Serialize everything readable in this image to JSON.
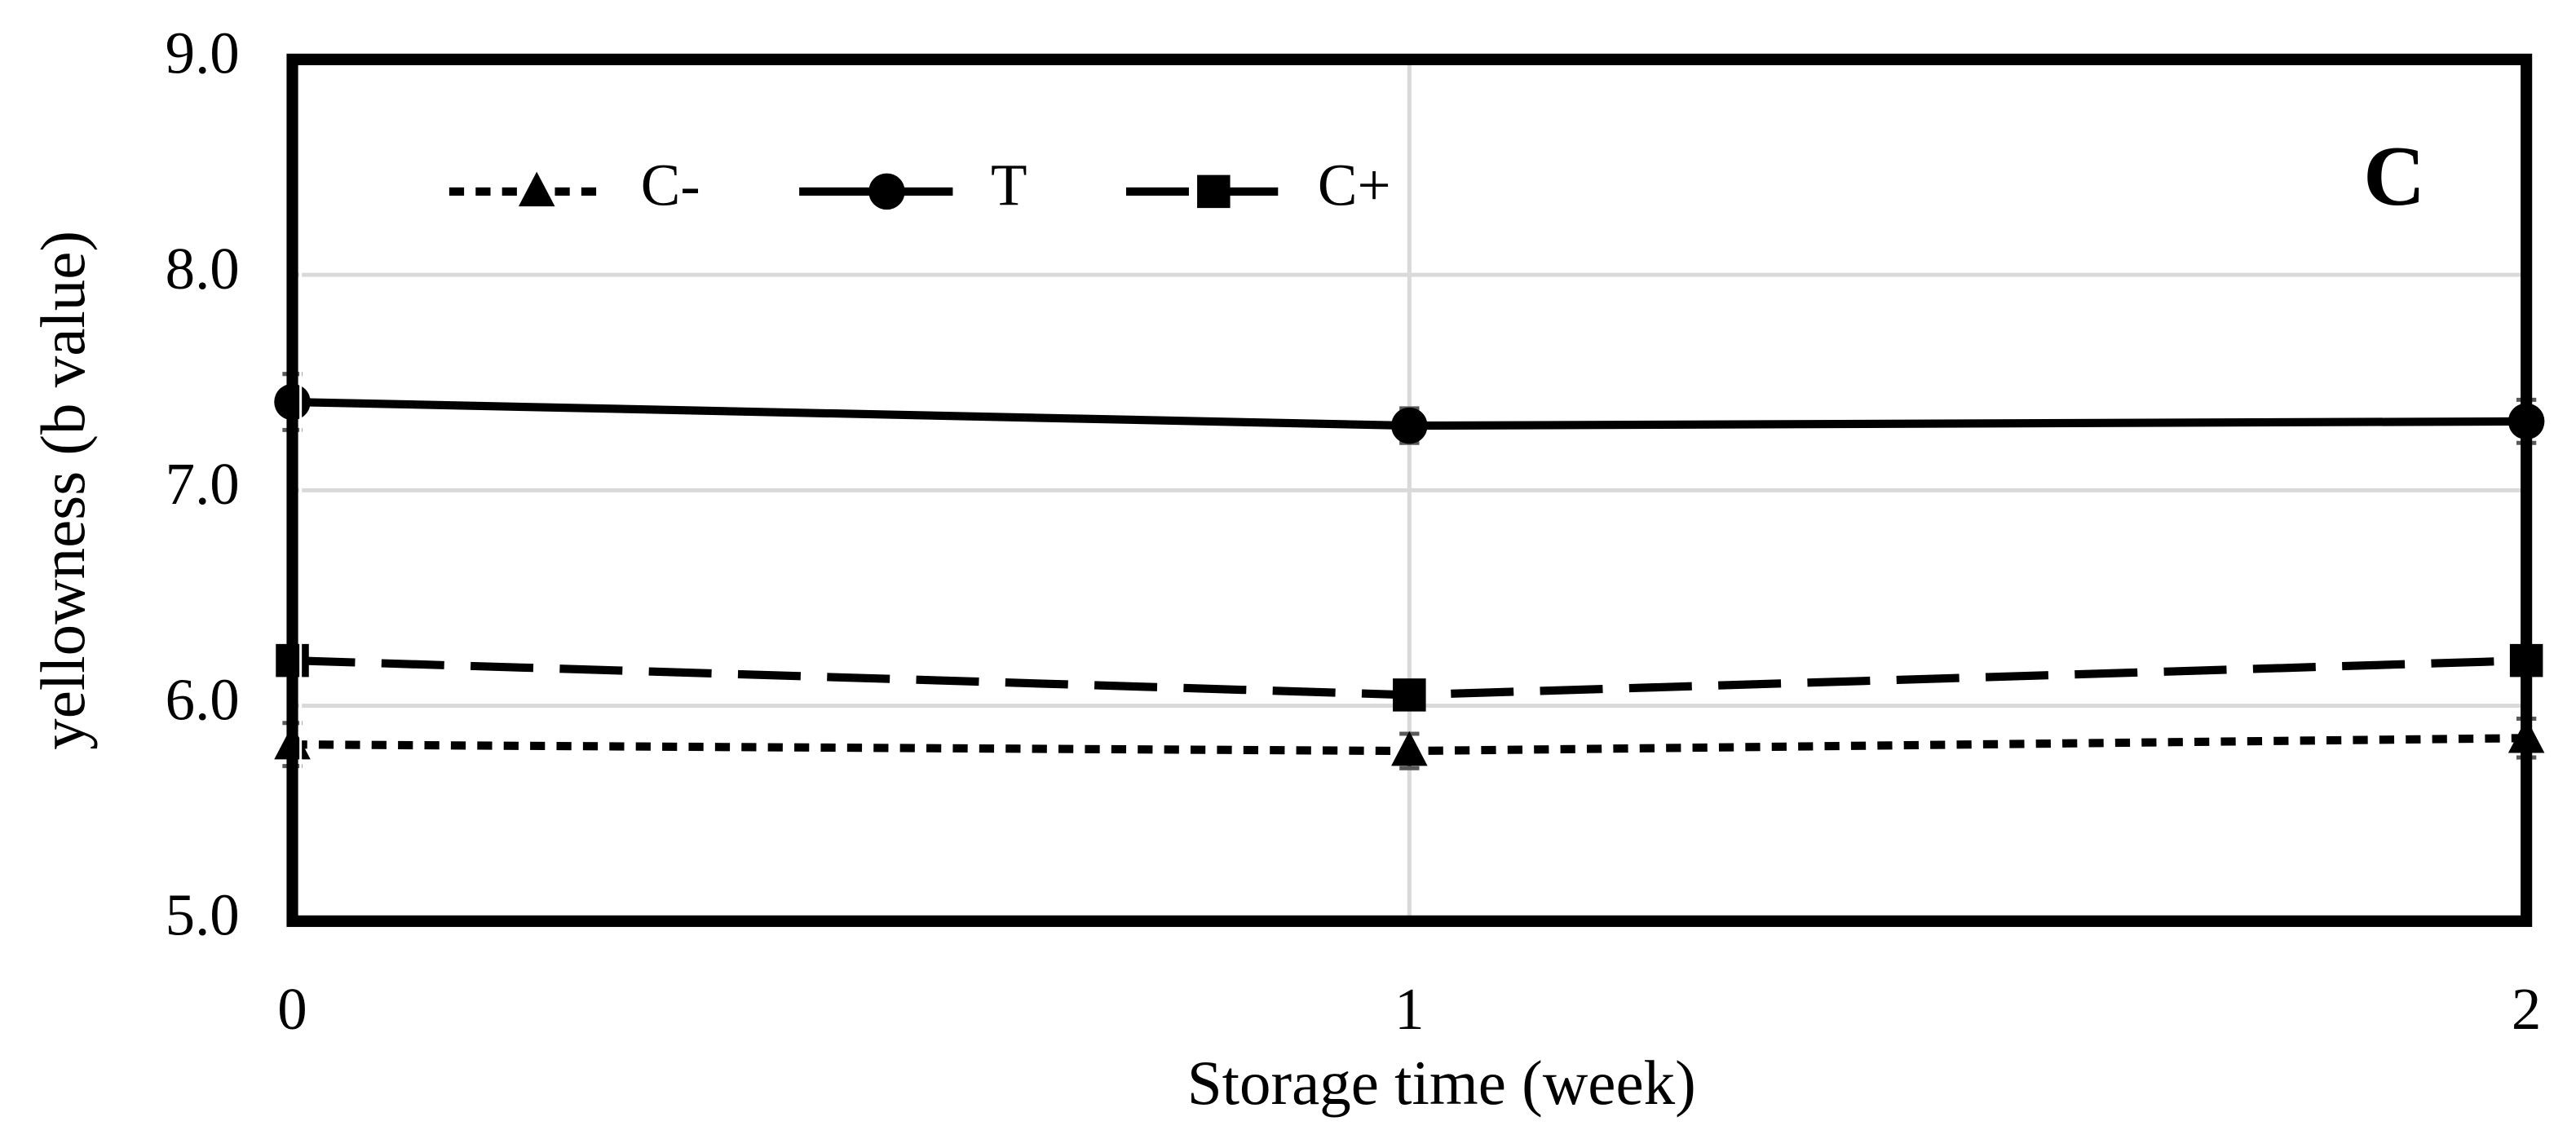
{
  "chart_data": {
    "type": "line",
    "annotation": "C",
    "x_label": "Storage time (week)",
    "y_label": "yellowness (b value)",
    "x": [
      0,
      1,
      2
    ],
    "xlim": [
      0,
      2
    ],
    "xticks": [
      0,
      1,
      2
    ],
    "ylim": [
      5,
      9
    ],
    "yticks": [
      {
        "value": 5,
        "label": "5.0"
      },
      {
        "value": 6,
        "label": "6.0"
      },
      {
        "value": 7,
        "label": "7.0"
      },
      {
        "value": 8,
        "label": "8.0"
      },
      {
        "value": 9,
        "label": "9.0"
      }
    ],
    "grid": true,
    "legend": "top-left",
    "series": [
      {
        "name": "C-",
        "color": "#000000",
        "dash": "short",
        "marker": "triangle",
        "values": [
          5.82,
          5.79,
          5.85
        ],
        "errors": [
          0.1,
          0.08,
          0.09
        ]
      },
      {
        "name": "T",
        "color": "#000000",
        "dash": "solid",
        "marker": "circle",
        "values": [
          7.41,
          7.3,
          7.32
        ],
        "errors": [
          0.13,
          0.08,
          0.1
        ]
      },
      {
        "name": "C+",
        "color": "#000000",
        "dash": "long",
        "marker": "square",
        "values": [
          6.21,
          6.05,
          6.21
        ],
        "errors": [
          0.05,
          0.05,
          0.05
        ]
      }
    ]
  }
}
